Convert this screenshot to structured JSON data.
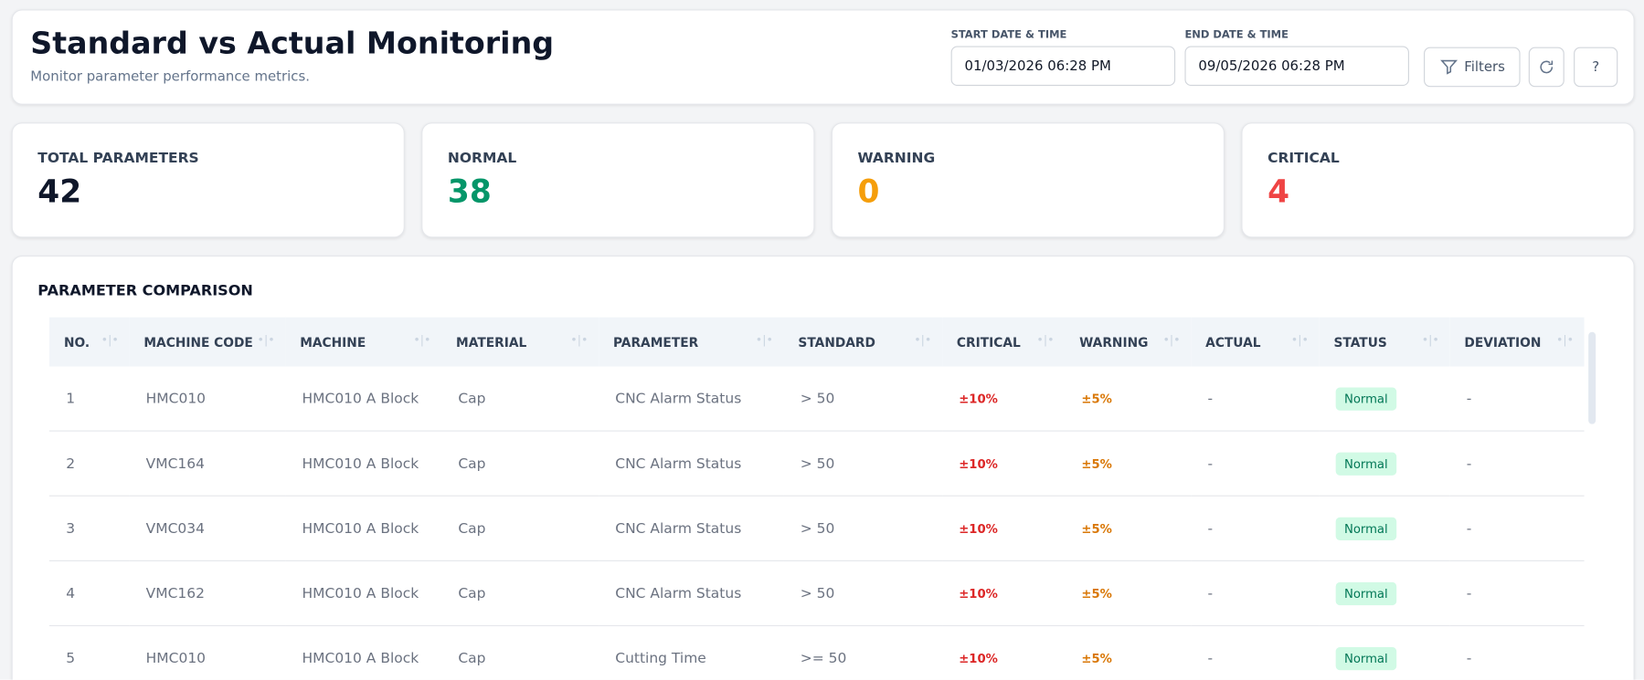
{
  "header": {
    "title": "Standard vs Actual Monitoring",
    "subtitle": "Monitor parameter performance metrics.",
    "start_label": "START DATE & TIME",
    "start_value": "01/03/2026 06:28 PM",
    "end_label": "END DATE & TIME",
    "end_value": "09/05/2026 06:28 PM",
    "filters": "Filters",
    "help": "?"
  },
  "stats": [
    {
      "label": "TOTAL PARAMETERS",
      "value": 42
    },
    {
      "label": "NORMAL",
      "value": 38
    },
    {
      "label": "WARNING",
      "value": 0
    },
    {
      "label": "CRITICAL",
      "value": 4
    }
  ],
  "table": {
    "title": "PARAMETER COMPARISON",
    "columns": [
      "NO.",
      "MACHINE CODE",
      "MACHINE",
      "MATERIAL",
      "PARAMETER",
      "STANDARD",
      "CRITICAL",
      "WARNING",
      "ACTUAL",
      "STATUS",
      "DEVIATION"
    ],
    "rows": [
      [
        "1",
        "HMC010",
        "HMC010 A Block",
        "Cap",
        "CNC Alarm Status",
        "> 50",
        "±10%",
        "±5%",
        "-",
        "Normal",
        "-"
      ],
      [
        "2",
        "VMC164",
        "HMC010 A Block",
        "Cap",
        "CNC Alarm Status",
        "> 50",
        "±10%",
        "±5%",
        "-",
        "Normal",
        "-"
      ],
      [
        "3",
        "VMC034",
        "HMC010 A Block",
        "Cap",
        "CNC Alarm Status",
        "> 50",
        "±10%",
        "±5%",
        "-",
        "Normal",
        "-"
      ],
      [
        "4",
        "VMC162",
        "HMC010 A Block",
        "Cap",
        "CNC Alarm Status",
        "> 50",
        "±10%",
        "±5%",
        "-",
        "Normal",
        "-"
      ],
      [
        "5",
        "HMC010",
        "HMC010 A Block",
        "Cap",
        "Cutting Time",
        ">= 50",
        "±10%",
        "±5%",
        "-",
        "Normal",
        "-"
      ]
    ]
  }
}
